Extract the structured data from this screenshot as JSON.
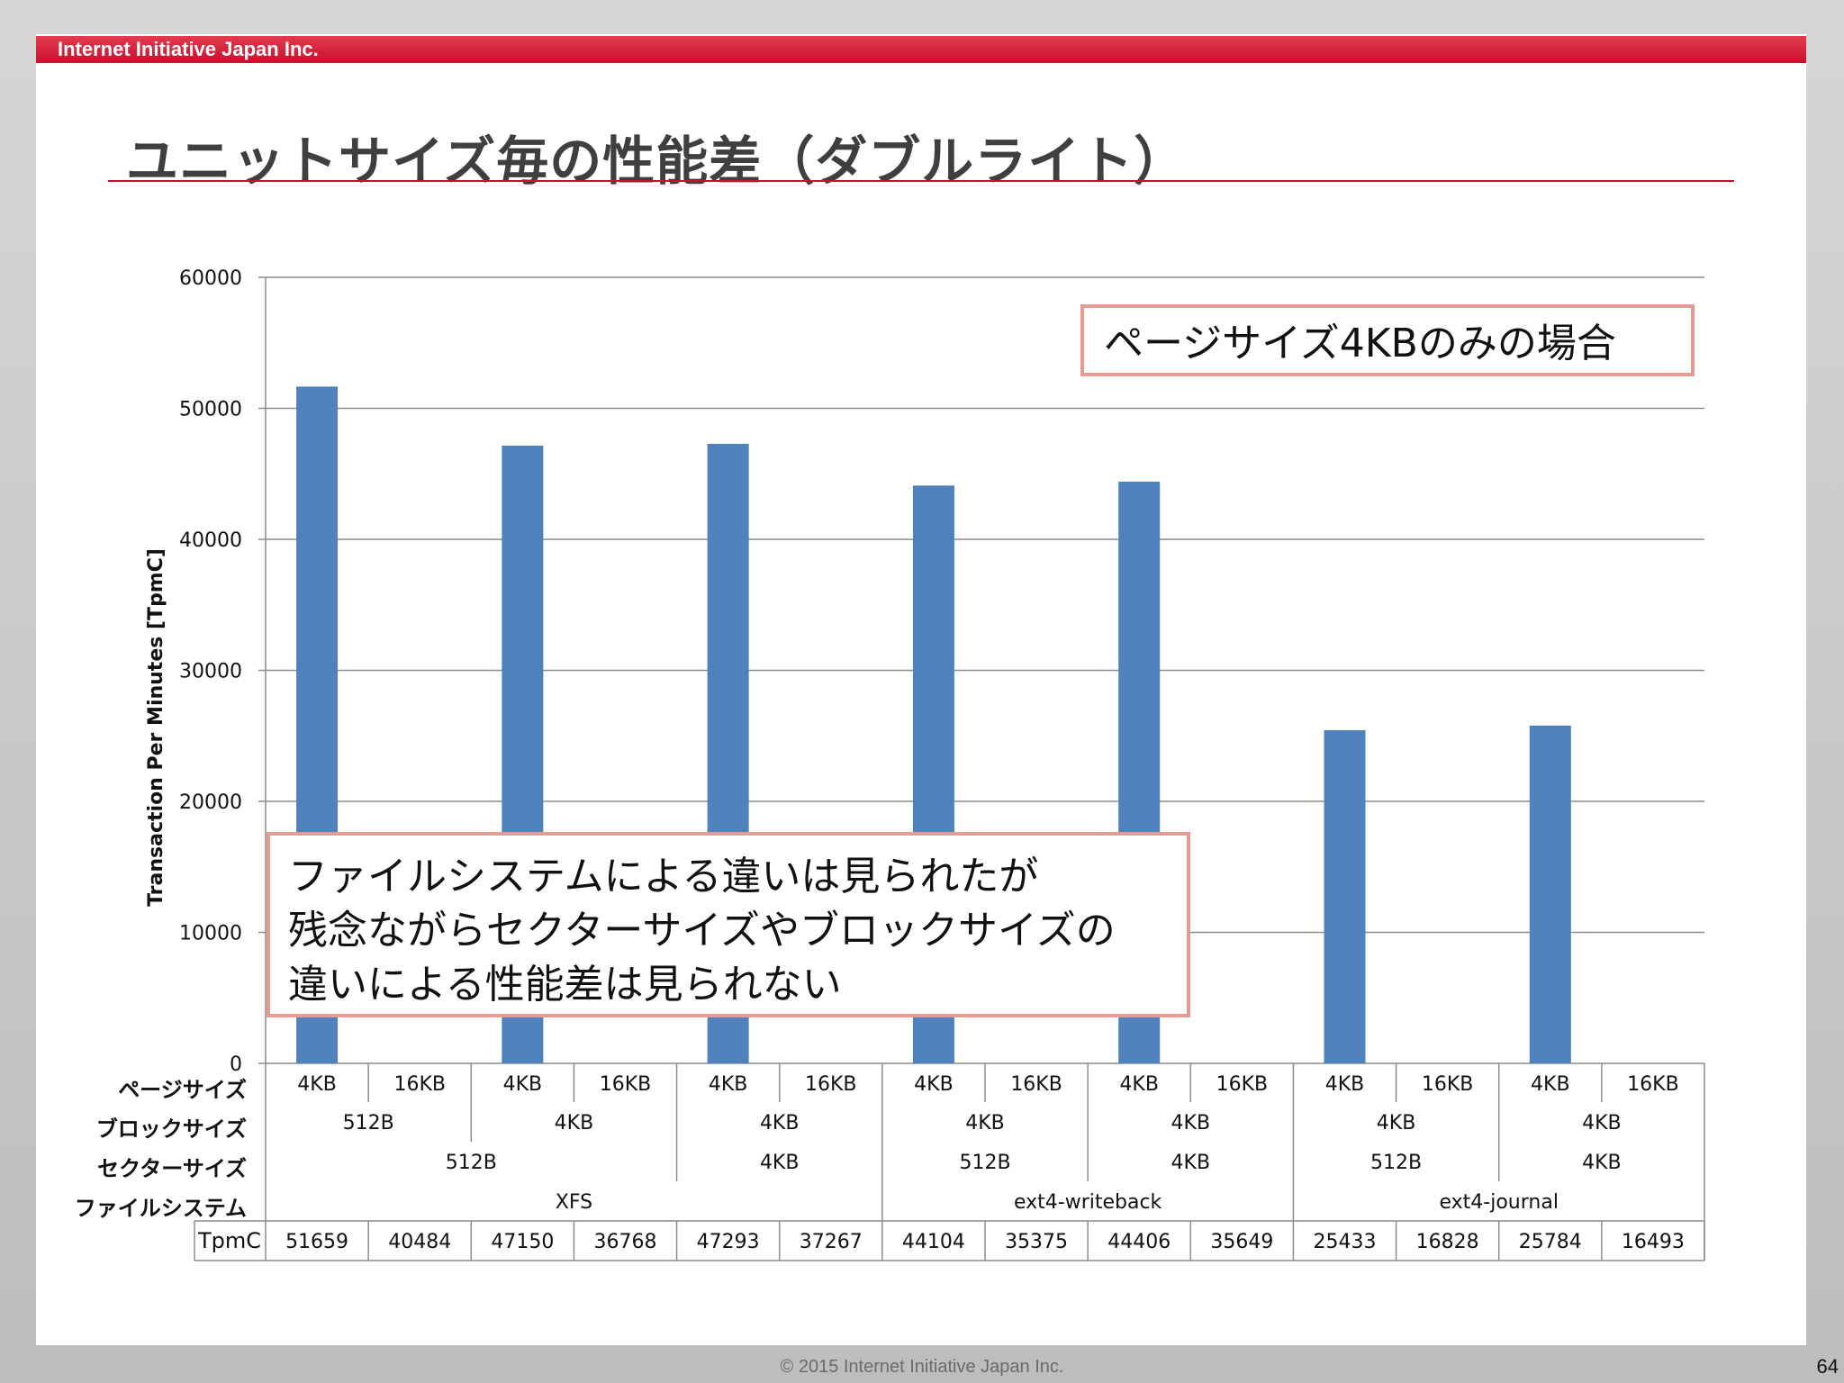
{
  "header": {
    "company": "Internet Initiative Japan Inc."
  },
  "slide": {
    "title": "ユニットサイズ毎の性能差（ダブルライト）",
    "page_number": "64",
    "footer": "© 2015 Internet Initiative Japan Inc."
  },
  "callouts": {
    "top_right": "ページサイズ4KBのみの場合",
    "main_lines": [
      "ファイルシステムによる違いは見られたが",
      "残念ながらセクターサイズやブロックサイズの",
      "違いによる性能差は見られない"
    ]
  },
  "colors": {
    "bar": "#4f81bd",
    "brand": "#c8102e",
    "callout_border": "#e59b95",
    "grid": "#8c8c8c"
  },
  "chart_data": {
    "type": "bar",
    "ylabel": "Transaction Per Minutes [TpmC]",
    "ylim": [
      0,
      60000
    ],
    "yticks": [
      0,
      10000,
      20000,
      30000,
      40000,
      50000,
      60000
    ],
    "grid": true,
    "categories": [
      "4KB",
      "16KB",
      "4KB",
      "16KB",
      "4KB",
      "16KB",
      "4KB",
      "16KB",
      "4KB",
      "16KB",
      "4KB",
      "16KB",
      "4KB",
      "16KB"
    ],
    "series": [
      {
        "values": [
          51659,
          0,
          47150,
          0,
          47293,
          0,
          44104,
          0,
          44406,
          0,
          25433,
          0,
          25784,
          0
        ]
      }
    ],
    "table": {
      "row_labels": {
        "page_size": "ページサイズ",
        "block_size": "ブロックサイズ",
        "sector_size": "セクターサイズ",
        "filesystem": "ファイルシステム",
        "tpmc": "TpmC"
      },
      "page_size": [
        "4KB",
        "16KB",
        "4KB",
        "16KB",
        "4KB",
        "16KB",
        "4KB",
        "16KB",
        "4KB",
        "16KB",
        "4KB",
        "16KB",
        "4KB",
        "16KB"
      ],
      "block_size": [
        {
          "label": "512B",
          "span": 2
        },
        {
          "label": "4KB",
          "span": 2
        },
        {
          "label": "4KB",
          "span": 2
        },
        {
          "label": "4KB",
          "span": 2
        },
        {
          "label": "4KB",
          "span": 2
        },
        {
          "label": "4KB",
          "span": 2
        },
        {
          "label": "4KB",
          "span": 2
        }
      ],
      "sector_size": [
        {
          "label": "512B",
          "span": 4
        },
        {
          "label": "4KB",
          "span": 2
        },
        {
          "label": "512B",
          "span": 2
        },
        {
          "label": "4KB",
          "span": 2
        },
        {
          "label": "512B",
          "span": 2
        },
        {
          "label": "4KB",
          "span": 2
        }
      ],
      "filesystem": [
        {
          "label": "XFS",
          "span": 6
        },
        {
          "label": "ext4-writeback",
          "span": 4
        },
        {
          "label": "ext4-journal",
          "span": 4
        }
      ],
      "tpmc": [
        "51659",
        "40484",
        "47150",
        "36768",
        "47293",
        "37267",
        "44104",
        "35375",
        "44406",
        "35649",
        "25433",
        "16828",
        "25784",
        "16493"
      ]
    }
  }
}
